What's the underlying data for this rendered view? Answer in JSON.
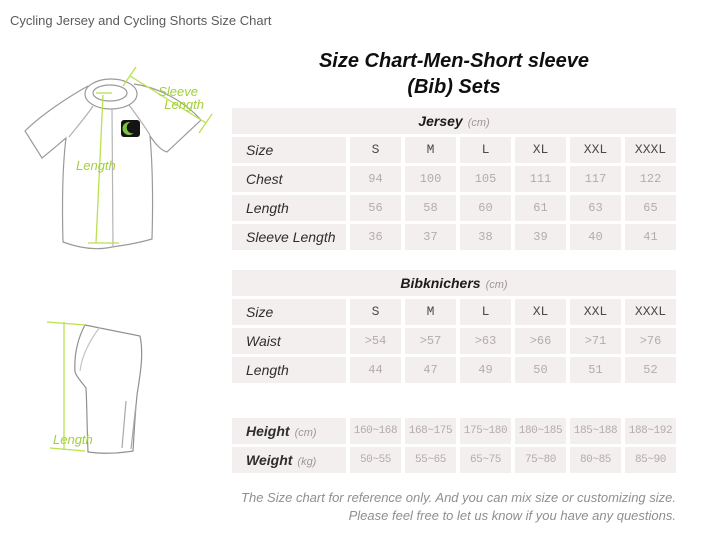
{
  "page_title": "Cycling Jersey and Cycling Shorts Size Chart",
  "heading": {
    "line1": "Size Chart-Men-Short sleeve",
    "line2": "(Bib) Sets"
  },
  "illustrations": {
    "jersey": {
      "length_label": "Length",
      "sleeve_label_line1": "Sleeve",
      "sleeve_label_line2": "Length"
    },
    "shorts": {
      "length_label": "Length"
    }
  },
  "colors": {
    "accent_green_text": "#a3cf3e",
    "accent_green_line": "#b9e14f",
    "table_cell_bg": "#f3efee",
    "value_text": "#b3acac",
    "label_text": "#2e2e2e",
    "muted_text": "#8f8f8f",
    "outline_gray": "#9a9a9a"
  },
  "tables": [
    {
      "id": "jersey",
      "title": "Jersey",
      "unit": "(cm)",
      "rows": [
        {
          "label": "Size",
          "emph": true,
          "values": [
            "S",
            "M",
            "L",
            "XL",
            "XXL",
            "XXXL"
          ]
        },
        {
          "label": "Chest",
          "values": [
            "94",
            "100",
            "105",
            "111",
            "117",
            "122"
          ]
        },
        {
          "label": "Length",
          "values": [
            "56",
            "58",
            "60",
            "61",
            "63",
            "65"
          ]
        },
        {
          "label": "Sleeve Length",
          "values": [
            "36",
            "37",
            "38",
            "39",
            "40",
            "41"
          ]
        }
      ]
    },
    {
      "id": "bibknichers",
      "title": "Bibknichers",
      "unit": "(cm)",
      "rows": [
        {
          "label": "Size",
          "emph": true,
          "values": [
            "S",
            "M",
            "L",
            "XL",
            "XXL",
            "XXXL"
          ]
        },
        {
          "label": "Waist",
          "values": [
            ">54",
            ">57",
            ">63",
            ">66",
            ">71",
            ">76"
          ]
        },
        {
          "label": "Length",
          "values": [
            "44",
            "47",
            "49",
            "50",
            "51",
            "52"
          ]
        }
      ]
    },
    {
      "id": "height-weight",
      "title": "",
      "unit": "",
      "rows": [
        {
          "label": "Height",
          "label_unit": "(cm)",
          "values": [
            "160~168",
            "168~175",
            "175~180",
            "180~185",
            "185~188",
            "188~192"
          ]
        },
        {
          "label": "Weight",
          "label_unit": "(kg)",
          "values": [
            "50~55",
            "55~65",
            "65~75",
            "75~80",
            "80~85",
            "85~90"
          ]
        }
      ]
    }
  ],
  "footer": {
    "line1": "The Size chart for reference only. And you can mix size or customizing size.",
    "line2": "Please feel free to let us know if you have any questions."
  }
}
